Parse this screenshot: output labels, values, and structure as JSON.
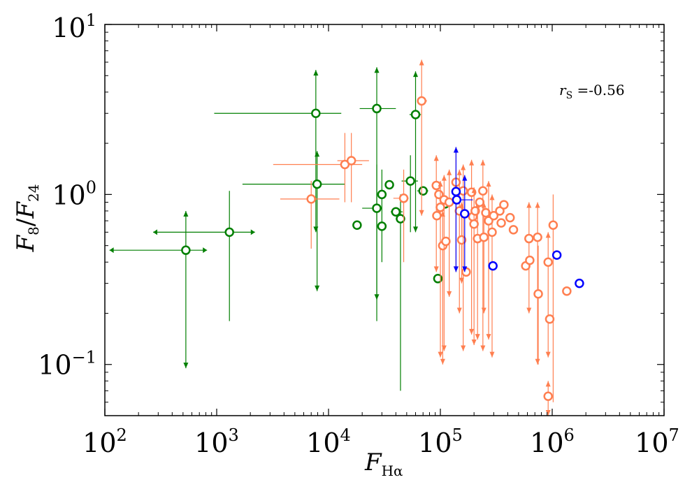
{
  "chart_data": {
    "type": "scatter",
    "xscale": "log",
    "yscale": "log",
    "xlim": [
      100,
      10000000
    ],
    "ylim": [
      0.05,
      10
    ],
    "x_ticks": [
      {
        "value": 100,
        "base": "10",
        "exp": "2"
      },
      {
        "value": 1000,
        "base": "10",
        "exp": "3"
      },
      {
        "value": 10000,
        "base": "10",
        "exp": "4"
      },
      {
        "value": 100000,
        "base": "10",
        "exp": "5"
      },
      {
        "value": 1000000,
        "base": "10",
        "exp": "6"
      },
      {
        "value": 10000000,
        "base": "10",
        "exp": "7"
      }
    ],
    "y_ticks": [
      {
        "value": 0.1,
        "base": "10",
        "exp": "−1"
      },
      {
        "value": 1,
        "base": "10",
        "exp": "0"
      },
      {
        "value": 10,
        "base": "10",
        "exp": "1"
      }
    ],
    "xlabel": {
      "main": "F",
      "sub": "Hα"
    },
    "ylabel": {
      "num": "F",
      "num_sub": "8",
      "den": "F",
      "den_sub": "24"
    },
    "annotation": {
      "prefix": "r",
      "sub": "S",
      "text": " =-0.56"
    },
    "series": [
      {
        "name": "green",
        "color": "#007f00",
        "points": [
          {
            "x": 530,
            "y": 0.47,
            "xerr": [
              110,
              820
            ],
            "yerr": [
              0.095,
              0.8
            ],
            "xarrows": true,
            "yarrows": true
          },
          {
            "x": 1300,
            "y": 0.6,
            "xerr": [
              270,
              2200
            ],
            "yerr": [
              0.18,
              1.05
            ],
            "xarrows": true
          },
          {
            "x": 7700,
            "y": 3.0,
            "xerr": [
              950,
              13000
            ],
            "yerr": [
              0.6,
              5.4
            ],
            "yarrows": true
          },
          {
            "x": 7900,
            "y": 1.15,
            "xerr": [
              1700,
              14000
            ],
            "yerr": [
              0.27,
              1.8
            ],
            "yarrows": true
          },
          {
            "x": 27000,
            "y": 3.2,
            "xerr": [
              19000,
              40000
            ],
            "yerr": [
              0.24,
              5.6
            ],
            "yarrows": true
          },
          {
            "x": 27000,
            "y": 0.83,
            "xerr": [
              20000,
              30000
            ],
            "yerr": [
              0.18,
              1.5
            ]
          },
          {
            "x": 30000,
            "y": 1.0,
            "xerr": [
              28000,
              33000
            ],
            "yerr": [
              0.4,
              1.4
            ]
          },
          {
            "x": 35000,
            "y": 1.14
          },
          {
            "x": 18000,
            "y": 0.66
          },
          {
            "x": 30000,
            "y": 0.65
          },
          {
            "x": 40000,
            "y": 0.79,
            "xerr": [
              36000,
              46000
            ]
          },
          {
            "x": 44000,
            "y": 0.72,
            "xerr": [
              40000,
              48000
            ],
            "yerr": [
              0.07,
              1.0
            ]
          },
          {
            "x": 54000,
            "y": 1.2,
            "xerr": [
              45000,
              63000
            ],
            "yerr": [
              0.6,
              1.7
            ]
          },
          {
            "x": 60000,
            "y": 2.95,
            "xerr": [
              53000,
              67000
            ],
            "yerr": [
              0.6,
              5.3
            ],
            "yarrows": true
          },
          {
            "x": 70000,
            "y": 1.05,
            "xerr": [
              62000,
              78000
            ]
          },
          {
            "x": 95000,
            "y": 0.32
          },
          {
            "x": 110000,
            "y": 0.88
          }
        ]
      },
      {
        "name": "orange",
        "color": "#ff7f50",
        "points": [
          {
            "x": 7000,
            "y": 0.94,
            "xerr": [
              3700,
              12500
            ],
            "yerr": [
              0.48,
              1.2
            ]
          },
          {
            "x": 14000,
            "y": 1.5,
            "xerr": [
              3200,
              20000
            ],
            "yerr": [
              0.9,
              2.3
            ]
          },
          {
            "x": 16000,
            "y": 1.58,
            "xerr": [
              12000,
              23000
            ],
            "yerr": [
              0.9,
              2.3
            ]
          },
          {
            "x": 47000,
            "y": 0.95,
            "xerr": [
              38000,
              52000
            ],
            "yerr": [
              0.4,
              1.4
            ]
          },
          {
            "x": 68000,
            "y": 3.55,
            "xerr": [
              63000,
              76000
            ],
            "yerr": [
              0.75,
              6.2
            ],
            "yarrows": true
          },
          {
            "x": 92000,
            "y": 1.13,
            "xerr": [
              86000,
              98000
            ],
            "yerr": [
              0.35,
              1.7
            ],
            "yarrows": true
          },
          {
            "x": 93000,
            "y": 0.75,
            "xerr": [
              88000,
              99000
            ]
          },
          {
            "x": 97000,
            "y": 1.0,
            "xerr": [
              90000,
              104000
            ]
          },
          {
            "x": 100000,
            "y": 0.84,
            "xerr": [
              95000,
              106000
            ],
            "yerr": [
              0.11,
              1.2
            ],
            "yarrows": true
          },
          {
            "x": 105000,
            "y": 0.5,
            "xerr": [
              99000,
              112000
            ],
            "yerr": [
              0.1,
              0.8
            ],
            "yarrows": true
          },
          {
            "x": 108000,
            "y": 0.93,
            "xerr": [
              102000,
              116000
            ],
            "yerr": [
              0.12,
              1.3
            ],
            "yarrows": true
          },
          {
            "x": 112000,
            "y": 0.53,
            "xerr": [
              105000,
              120000
            ]
          },
          {
            "x": 120000,
            "y": 0.9,
            "xerr": [
              112000,
              130000
            ],
            "yerr": [
              0.25,
              1.4
            ],
            "yarrows": true
          },
          {
            "x": 138000,
            "y": 1.18,
            "xerr": [
              128000,
              150000
            ],
            "yerr": [
              0.35,
              1.9
            ],
            "yarrows": true
          },
          {
            "x": 148000,
            "y": 0.8,
            "xerr": [
              138000,
              160000
            ],
            "yerr": [
              0.2,
              1.4
            ],
            "yarrows": true
          },
          {
            "x": 155000,
            "y": 0.54,
            "xerr": [
              145000,
              165000
            ],
            "yerr": [
              0.3,
              0.9
            ],
            "yarrows": true
          },
          {
            "x": 160000,
            "y": 1.05,
            "xerr": [
              150000,
              172000
            ],
            "yerr": [
              0.12,
              1.5
            ],
            "yarrows": true
          },
          {
            "x": 170000,
            "y": 0.35,
            "xerr": [
              160000,
              180000
            ]
          },
          {
            "x": 190000,
            "y": 1.03,
            "xerr": [
              175000,
              205000
            ],
            "yerr": [
              0.15,
              1.6
            ],
            "yarrows": true
          },
          {
            "x": 195000,
            "y": 0.74,
            "xerr": [
              180000,
              210000
            ]
          },
          {
            "x": 200000,
            "y": 0.67,
            "xerr": [
              185000,
              215000
            ],
            "yerr": [
              0.13,
              1.1
            ],
            "yarrows": true
          },
          {
            "x": 205000,
            "y": 0.8,
            "xerr": [
              190000,
              220000
            ]
          },
          {
            "x": 215000,
            "y": 0.55,
            "xerr": [
              200000,
              232000
            ],
            "yerr": [
              0.14,
              0.9
            ],
            "yarrows": true
          },
          {
            "x": 225000,
            "y": 0.9,
            "xerr": [
              210000,
              240000
            ]
          },
          {
            "x": 240000,
            "y": 1.05,
            "xerr": [
              222000,
              258000
            ],
            "yerr": [
              0.12,
              1.6
            ],
            "yarrows": true
          },
          {
            "x": 245000,
            "y": 0.56,
            "xerr": [
              228000,
              262000
            ],
            "yerr": [
              0.2,
              0.9
            ],
            "yarrows": true
          },
          {
            "x": 255000,
            "y": 0.78,
            "xerr": [
              238000,
              272000
            ]
          },
          {
            "x": 270000,
            "y": 0.7,
            "xerr": [
              252000,
              290000
            ],
            "yerr": [
              0.14,
              1.2
            ],
            "yarrows": true
          },
          {
            "x": 290000,
            "y": 0.6,
            "xerr": [
              270000,
              312000
            ],
            "yerr": [
              0.11,
              1.0
            ],
            "yarrows": true
          },
          {
            "x": 300000,
            "y": 0.75,
            "xerr": [
              280000,
              322000
            ]
          },
          {
            "x": 340000,
            "y": 0.8,
            "xerr": [
              315000,
              365000
            ]
          },
          {
            "x": 350000,
            "y": 0.68,
            "xerr": [
              325000,
              375000
            ]
          },
          {
            "x": 370000,
            "y": 0.87,
            "xerr": [
              345000,
              395000
            ]
          },
          {
            "x": 420000,
            "y": 0.73,
            "xerr": [
              390000,
              450000
            ]
          },
          {
            "x": 450000,
            "y": 0.62,
            "xerr": [
              420000,
              480000
            ]
          },
          {
            "x": 580000,
            "y": 0.38,
            "xerr": [
              550000,
              610000
            ]
          },
          {
            "x": 620000,
            "y": 0.55,
            "xerr": [
              590000,
              650000
            ],
            "yerr": [
              0.2,
              0.9
            ],
            "yarrows": true
          },
          {
            "x": 630000,
            "y": 0.41,
            "xerr": [
              600000,
              660000
            ]
          },
          {
            "x": 740000,
            "y": 0.56,
            "xerr": [
              700000,
              780000
            ],
            "yerr": [
              0.1,
              0.9
            ],
            "yarrows": true
          },
          {
            "x": 750000,
            "y": 0.26,
            "xerr": [
              710000,
              790000
            ],
            "yerr": [
              0.1,
              0.5
            ]
          },
          {
            "x": 920000,
            "y": 0.4,
            "xerr": [
              870000,
              970000
            ],
            "yerr": [
              0.11,
              0.6
            ],
            "yarrows": true
          },
          {
            "x": 950000,
            "y": 0.185
          },
          {
            "x": 1020000,
            "y": 0.66,
            "xerr": [
              960000,
              1080000
            ],
            "yerr": [
              0.06,
              1.0
            ]
          },
          {
            "x": 1350000,
            "y": 0.27,
            "xerr": [
              1270000,
              1430000
            ]
          },
          {
            "x": 920000,
            "y": 0.065,
            "xerr": [
              870000,
              970000
            ],
            "yerr": [
              0.05,
              0.08
            ],
            "yarrows": true
          }
        ]
      },
      {
        "name": "blue",
        "color": "#0000ff",
        "points": [
          {
            "x": 138000,
            "y": 1.04,
            "xerr": [
              128000,
              150000
            ],
            "yerr": [
              0.35,
              1.9
            ],
            "yarrows": true
          },
          {
            "x": 140000,
            "y": 0.93,
            "xerr": [
              130000,
              195000
            ]
          },
          {
            "x": 165000,
            "y": 0.77,
            "xerr": [
              155000,
              176000
            ],
            "yerr": [
              0.35,
              1.3
            ],
            "yarrows": true
          },
          {
            "x": 295000,
            "y": 0.38,
            "xerr": [
              280000,
              310000
            ]
          },
          {
            "x": 1100000,
            "y": 0.44
          },
          {
            "x": 1750000,
            "y": 0.3
          }
        ]
      }
    ]
  }
}
